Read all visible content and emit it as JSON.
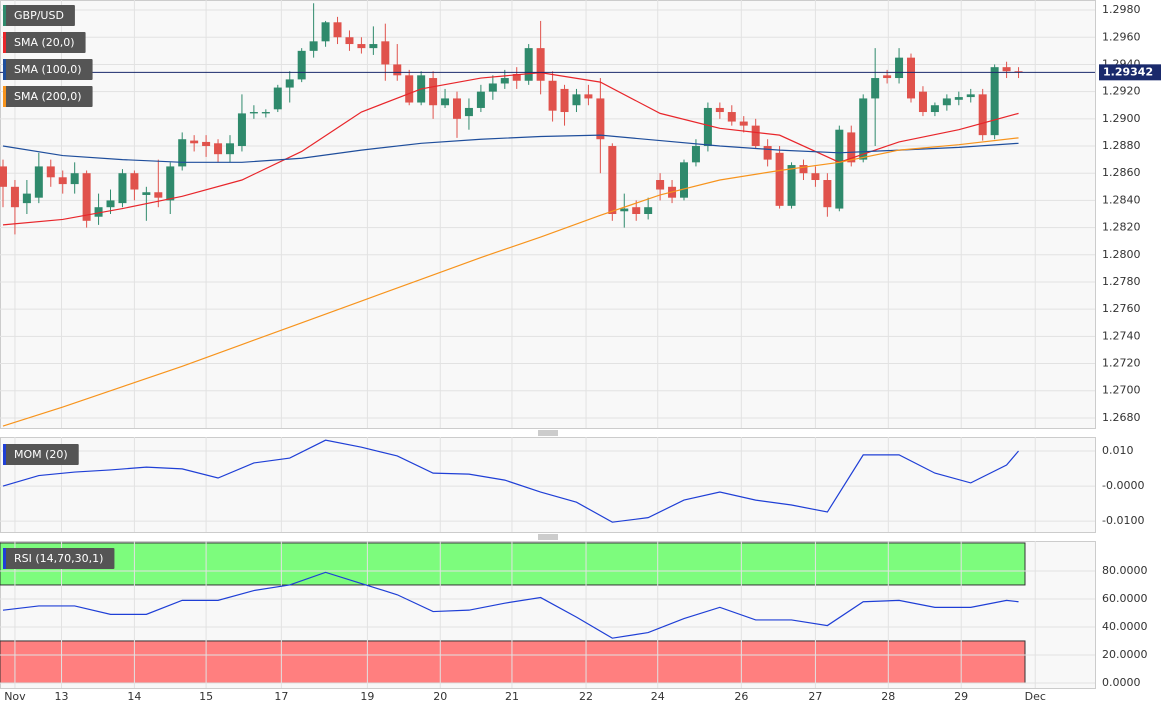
{
  "chart_data": [
    {
      "type": "candlestick",
      "title": "GBP/USD",
      "up_color": "#2f8a6c",
      "down_color": "#e0524c",
      "open": [
        1.2865,
        1.285,
        1.2838,
        1.2842,
        1.2865,
        1.2857,
        1.2852,
        1.286,
        1.2828,
        1.2835,
        1.2838,
        1.286,
        1.2844,
        1.2846,
        1.284,
        1.2865,
        1.2884,
        1.2883,
        1.2882,
        1.2874,
        1.288,
        1.2904,
        1.2904,
        1.2907,
        1.2923,
        1.2929,
        1.295,
        1.2957,
        1.2971,
        1.296,
        1.2955,
        1.2952,
        1.2957,
        1.294,
        1.2932,
        1.2912,
        1.293,
        1.291,
        1.2915,
        1.2902,
        1.2908,
        1.292,
        1.2926,
        1.2933,
        1.2928,
        1.2952,
        1.2928,
        1.2922,
        1.291,
        1.2918,
        1.2915,
        1.288,
        1.2832,
        1.2835,
        1.283,
        1.2855,
        1.285,
        1.2842,
        1.2868,
        1.288,
        1.2908,
        1.2905,
        1.2898,
        1.2895,
        1.288,
        1.2875,
        1.2836,
        1.2866,
        1.286,
        1.2855,
        1.2834,
        1.289,
        1.287,
        1.2915,
        1.2932,
        1.293,
        1.2945,
        1.292,
        1.2905,
        1.291,
        1.2914,
        1.2916,
        1.2918,
        1.2888,
        1.2938,
        1.2935
      ],
      "high": [
        1.287,
        1.2855,
        1.2855,
        1.2875,
        1.287,
        1.2862,
        1.2868,
        1.2862,
        1.2845,
        1.2848,
        1.2863,
        1.2862,
        1.285,
        1.287,
        1.2868,
        1.289,
        1.2888,
        1.2888,
        1.2885,
        1.2888,
        1.2918,
        1.291,
        1.2907,
        1.2925,
        1.2935,
        1.2952,
        1.2985,
        1.2972,
        1.2975,
        1.2965,
        1.296,
        1.2968,
        1.297,
        1.2955,
        1.2936,
        1.2935,
        1.2935,
        1.2922,
        1.292,
        1.2915,
        1.2925,
        1.2932,
        1.2936,
        1.2938,
        1.2955,
        1.2972,
        1.2935,
        1.2925,
        1.2922,
        1.2925,
        1.293,
        1.2882,
        1.2845,
        1.284,
        1.2842,
        1.286,
        1.2855,
        1.287,
        1.2885,
        1.2912,
        1.2912,
        1.291,
        1.2902,
        1.29,
        1.2885,
        1.288,
        1.2868,
        1.287,
        1.2865,
        1.286,
        1.2895,
        1.2895,
        1.2918,
        1.2952,
        1.2936,
        1.2952,
        1.2948,
        1.2924,
        1.2912,
        1.2918,
        1.292,
        1.2922,
        1.2922,
        1.294,
        1.2942,
        1.2938
      ],
      "low": [
        1.2835,
        1.2815,
        1.283,
        1.2838,
        1.285,
        1.2845,
        1.2845,
        1.282,
        1.2822,
        1.283,
        1.2835,
        1.284,
        1.2825,
        1.2835,
        1.283,
        1.2862,
        1.2876,
        1.2872,
        1.2868,
        1.2868,
        1.2876,
        1.29,
        1.2901,
        1.2905,
        1.2912,
        1.2927,
        1.2945,
        1.2953,
        1.2955,
        1.295,
        1.2948,
        1.2947,
        1.2928,
        1.2928,
        1.291,
        1.291,
        1.29,
        1.2908,
        1.2886,
        1.2892,
        1.2905,
        1.2914,
        1.2922,
        1.2922,
        1.2925,
        1.2918,
        1.2898,
        1.2895,
        1.2905,
        1.291,
        1.286,
        1.2825,
        1.282,
        1.2825,
        1.2826,
        1.284,
        1.2838,
        1.284,
        1.2865,
        1.2876,
        1.29,
        1.2895,
        1.289,
        1.2878,
        1.2865,
        1.2834,
        1.2834,
        1.2855,
        1.285,
        1.2828,
        1.2832,
        1.2865,
        1.2868,
        1.288,
        1.2926,
        1.2926,
        1.2912,
        1.2902,
        1.2902,
        1.2906,
        1.291,
        1.2912,
        1.2884,
        1.2885,
        1.293,
        1.293
      ],
      "close": [
        1.285,
        1.2835,
        1.2845,
        1.2865,
        1.2857,
        1.2852,
        1.286,
        1.2825,
        1.2835,
        1.284,
        1.286,
        1.2848,
        1.2846,
        1.2842,
        1.2865,
        1.2885,
        1.2882,
        1.288,
        1.2874,
        1.2882,
        1.2904,
        1.2905,
        1.2905,
        1.2923,
        1.2929,
        1.295,
        1.2957,
        1.2971,
        1.296,
        1.2955,
        1.2952,
        1.2955,
        1.294,
        1.2932,
        1.2912,
        1.2932,
        1.291,
        1.2915,
        1.29,
        1.2908,
        1.292,
        1.2926,
        1.293,
        1.2928,
        1.2952,
        1.2928,
        1.2906,
        1.2905,
        1.2918,
        1.2915,
        1.2885,
        1.283,
        1.2834,
        1.283,
        1.2835,
        1.2848,
        1.2842,
        1.2868,
        1.288,
        1.2908,
        1.2905,
        1.2898,
        1.2895,
        1.288,
        1.287,
        1.2836,
        1.2866,
        1.286,
        1.2855,
        1.2835,
        1.2892,
        1.2868,
        1.2915,
        1.293,
        1.293,
        1.2945,
        1.2915,
        1.2905,
        1.291,
        1.2915,
        1.2916,
        1.2918,
        1.2888,
        1.2938,
        1.2935,
        1.29342
      ],
      "last_price": 1.29342,
      "price_color": "#1a2a6c",
      "series": [
        {
          "name": "SMA (20,0)",
          "color": "#e8262b",
          "x": [
            0,
            5,
            10,
            15,
            20,
            25,
            30,
            35,
            40,
            45,
            50,
            55,
            60,
            65,
            70,
            75,
            80,
            85
          ],
          "values": [
            1.2822,
            1.2826,
            1.2834,
            1.2843,
            1.2855,
            1.2876,
            1.2905,
            1.2922,
            1.293,
            1.2934,
            1.2927,
            1.2904,
            1.2893,
            1.2888,
            1.2868,
            1.2883,
            1.2892,
            1.2904
          ]
        },
        {
          "name": "SMA (100,0)",
          "color": "#1f4e9c",
          "x": [
            0,
            5,
            10,
            15,
            20,
            25,
            30,
            35,
            40,
            45,
            50,
            55,
            60,
            65,
            70,
            75,
            80,
            85
          ],
          "values": [
            1.288,
            1.2873,
            1.287,
            1.2868,
            1.2868,
            1.2871,
            1.2877,
            1.2882,
            1.2885,
            1.2887,
            1.2888,
            1.2884,
            1.288,
            1.2877,
            1.2875,
            1.2877,
            1.2879,
            1.2882
          ]
        },
        {
          "name": "SMA (200,0)",
          "color": "#f7941d",
          "x": [
            0,
            5,
            10,
            15,
            20,
            25,
            30,
            35,
            40,
            45,
            50,
            55,
            60,
            65,
            70,
            75,
            80,
            85
          ],
          "values": [
            1.2674,
            1.2688,
            1.2703,
            1.2718,
            1.2734,
            1.275,
            1.2766,
            1.2782,
            1.2798,
            1.2813,
            1.2829,
            1.2844,
            1.2855,
            1.2862,
            1.2868,
            1.2877,
            1.2881,
            1.2886
          ]
        }
      ],
      "xlim": [
        -0.25,
        91.4
      ],
      "ylim": [
        1.26726,
        1.29874
      ],
      "yticks": [
        {
          "value": 1.298,
          "label": "1.2980"
        },
        {
          "value": 1.296,
          "label": "1.2960"
        },
        {
          "value": 1.294,
          "label": "1.2940"
        },
        {
          "value": 1.292,
          "label": "1.2920"
        },
        {
          "value": 1.29,
          "label": "1.2900"
        },
        {
          "value": 1.288,
          "label": "1.2880"
        },
        {
          "value": 1.286,
          "label": "1.2860"
        },
        {
          "value": 1.284,
          "label": "1.2840"
        },
        {
          "value": 1.282,
          "label": "1.2820"
        },
        {
          "value": 1.28,
          "label": "1.2800"
        },
        {
          "value": 1.278,
          "label": "1.2780"
        },
        {
          "value": 1.276,
          "label": "1.2760"
        },
        {
          "value": 1.274,
          "label": "1.2740"
        },
        {
          "value": 1.272,
          "label": "1.2720"
        },
        {
          "value": 1.27,
          "label": "1.2700"
        },
        {
          "value": 1.268,
          "label": "1.2680"
        }
      ]
    },
    {
      "type": "line",
      "title": "MOM (20)",
      "color": "#1f3fd6",
      "x": [
        0,
        3,
        6,
        9,
        12,
        15,
        18,
        21,
        24,
        27,
        30,
        33,
        36,
        39,
        42,
        45,
        48,
        51,
        54,
        57,
        60,
        63,
        66,
        69,
        72,
        75,
        78,
        81,
        84,
        85
      ],
      "values": [
        0,
        0.003,
        0.004,
        0.0046,
        0.0054,
        0.0049,
        0.0023,
        0.0066,
        0.008,
        0.0131,
        0.0111,
        0.0086,
        0.0037,
        0.0034,
        0.0017,
        -0.0017,
        -0.0046,
        -0.0103,
        -0.009,
        -0.004,
        -0.0017,
        -0.004,
        -0.0054,
        -0.0074,
        0.0089,
        0.0089,
        0.0037,
        0.0009,
        0.006,
        0.01
      ],
      "xlim": [
        -0.25,
        91.4
      ],
      "ylim": [
        -0.0131,
        0.014
      ],
      "yticks": [
        {
          "value": 0.01,
          "label": "0.010"
        },
        {
          "value": 0,
          "label": "-0.0000"
        },
        {
          "value": -0.01,
          "label": "-0.0100"
        }
      ]
    },
    {
      "type": "line",
      "title": "RSI (14,70,30,1)",
      "color": "#1f3fd6",
      "x": [
        0,
        3,
        6,
        9,
        12,
        15,
        18,
        21,
        24,
        27,
        30,
        33,
        36,
        39,
        42,
        45,
        48,
        51,
        54,
        57,
        60,
        63,
        66,
        69,
        72,
        75,
        78,
        81,
        84,
        85
      ],
      "values": [
        52,
        55,
        55,
        49,
        49,
        59,
        59,
        66,
        70,
        79,
        71,
        63,
        51,
        52,
        57,
        61,
        47,
        32,
        36,
        46,
        54,
        45,
        45,
        41,
        58,
        59,
        54,
        54,
        59,
        58
      ],
      "bands": [
        {
          "from": 70,
          "to": 100,
          "color": "#7dfc7d"
        },
        {
          "from": 0,
          "to": 30,
          "color": "#ff7f7f"
        }
      ],
      "xlim": [
        -0.25,
        91.4
      ],
      "ylim": [
        -3.6,
        101.4
      ],
      "yticks": [
        {
          "value": 80,
          "label": "80.0000"
        },
        {
          "value": 60,
          "label": "60.0000"
        },
        {
          "value": 40,
          "label": "40.0000"
        },
        {
          "value": 20,
          "label": "20.0000"
        },
        {
          "value": 0,
          "label": "0.0000"
        }
      ],
      "xticks": [
        {
          "value": 1,
          "label": "Nov"
        },
        {
          "value": 4.9,
          "label": "13"
        },
        {
          "value": 11,
          "label": "14"
        },
        {
          "value": 17,
          "label": "15"
        },
        {
          "value": 23.3,
          "label": "17"
        },
        {
          "value": 30.5,
          "label": "19"
        },
        {
          "value": 36.6,
          "label": "20"
        },
        {
          "value": 42.6,
          "label": "21"
        },
        {
          "value": 48.8,
          "label": "22"
        },
        {
          "value": 54.8,
          "label": "24"
        },
        {
          "value": 61.8,
          "label": "26"
        },
        {
          "value": 68,
          "label": "27"
        },
        {
          "value": 74.1,
          "label": "28"
        },
        {
          "value": 80.2,
          "label": "29"
        },
        {
          "value": 86.4,
          "label": "Dec"
        }
      ]
    }
  ]
}
